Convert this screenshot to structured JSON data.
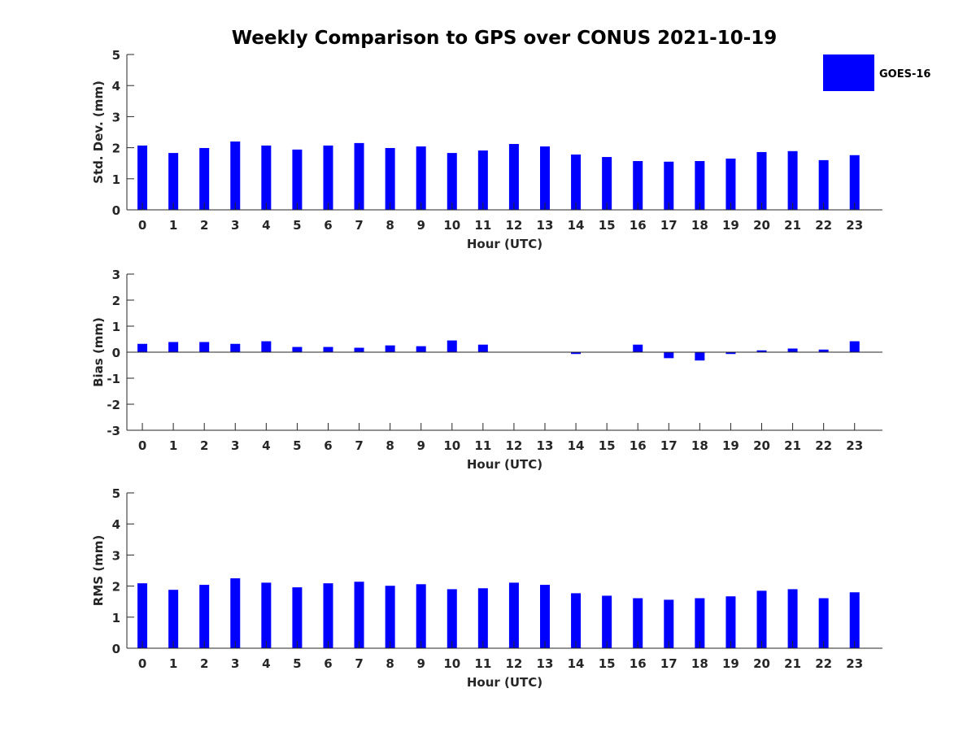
{
  "chart_data": {
    "title": "Weekly Comparison to GPS over CONUS 2021-10-19",
    "legend": {
      "entries": [
        "GOES-16"
      ],
      "placement": "top-right"
    },
    "colors": {
      "series": "#0000ff",
      "axis": "#262626"
    },
    "charts": [
      {
        "type": "bar",
        "xlabel": "Hour (UTC)",
        "ylabel": "Std. Dev. (mm)",
        "ylim": [
          0,
          5
        ],
        "yticks": [
          0,
          1,
          2,
          3,
          4,
          5
        ],
        "categories": [
          0,
          1,
          2,
          3,
          4,
          5,
          6,
          7,
          8,
          9,
          10,
          11,
          12,
          13,
          14,
          15,
          16,
          17,
          18,
          19,
          20,
          21,
          22,
          23
        ],
        "series": [
          {
            "name": "GOES-16",
            "values": [
              2.07,
              1.83,
              1.99,
              2.2,
              2.07,
              1.94,
              2.07,
              2.15,
              1.99,
              2.04,
              1.83,
              1.91,
              2.12,
              2.04,
              1.78,
              1.7,
              1.57,
              1.55,
              1.57,
              1.65,
              1.86,
              1.89,
              1.6,
              1.76
            ]
          }
        ]
      },
      {
        "type": "bar",
        "xlabel": "Hour (UTC)",
        "ylabel": "Bias (mm)",
        "ylim": [
          -3,
          3
        ],
        "yticks": [
          -3,
          -2,
          -1,
          0,
          1,
          2,
          3
        ],
        "categories": [
          0,
          1,
          2,
          3,
          4,
          5,
          6,
          7,
          8,
          9,
          10,
          11,
          12,
          13,
          14,
          15,
          16,
          17,
          18,
          19,
          20,
          21,
          22,
          23
        ],
        "series": [
          {
            "name": "GOES-16",
            "values": [
              0.32,
              0.39,
              0.39,
              0.32,
              0.42,
              0.2,
              0.2,
              0.17,
              0.26,
              0.23,
              0.45,
              0.29,
              0.01,
              0.0,
              -0.07,
              0.0,
              0.29,
              -0.23,
              -0.32,
              -0.07,
              0.07,
              0.14,
              0.1,
              0.42
            ]
          }
        ]
      },
      {
        "type": "bar",
        "xlabel": "Hour (UTC)",
        "ylabel": "RMS (mm)",
        "ylim": [
          0,
          5
        ],
        "yticks": [
          0,
          1,
          2,
          3,
          4,
          5
        ],
        "categories": [
          0,
          1,
          2,
          3,
          4,
          5,
          6,
          7,
          8,
          9,
          10,
          11,
          12,
          13,
          14,
          15,
          16,
          17,
          18,
          19,
          20,
          21,
          22,
          23
        ],
        "series": [
          {
            "name": "GOES-16",
            "values": [
              2.09,
              1.88,
              2.04,
              2.25,
              2.11,
              1.96,
              2.09,
              2.14,
              2.01,
              2.06,
              1.9,
              1.93,
              2.11,
              2.04,
              1.77,
              1.69,
              1.61,
              1.56,
              1.61,
              1.67,
              1.85,
              1.9,
              1.61,
              1.8
            ]
          }
        ]
      }
    ]
  }
}
